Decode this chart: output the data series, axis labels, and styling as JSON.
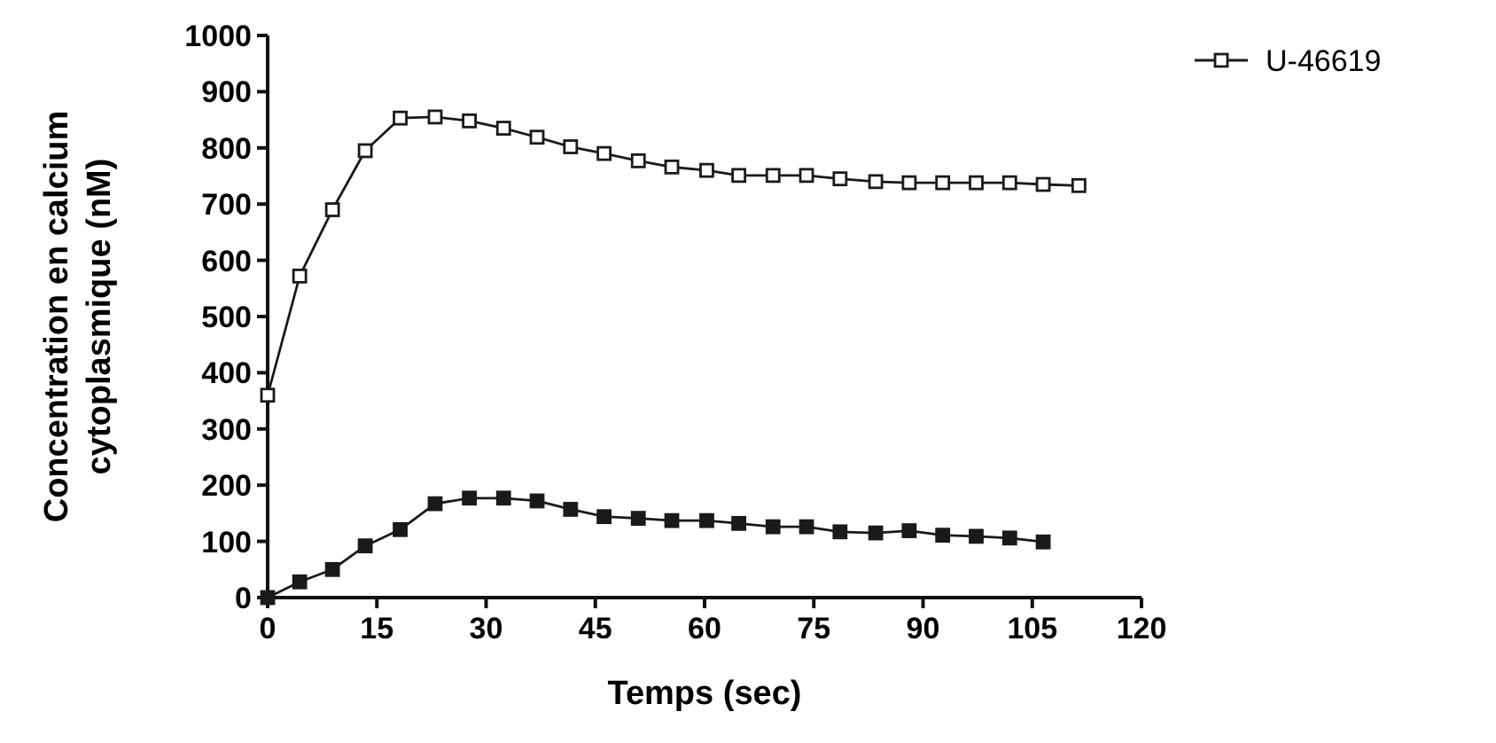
{
  "chart_data": {
    "type": "line",
    "xlabel": "Temps (sec)",
    "ylabel": "Concentration en calcium\ncytoplasmique (nM)",
    "xlim": [
      0,
      120
    ],
    "xticks": [
      0,
      15,
      30,
      45,
      60,
      75,
      90,
      105,
      120
    ],
    "ylim": [
      0,
      1000
    ],
    "yticks": [
      0,
      100,
      200,
      300,
      400,
      500,
      600,
      700,
      800,
      900,
      1000
    ],
    "marker": "square",
    "legend": "top right",
    "grid": false,
    "series": [
      {
        "name": "U-46619",
        "color": "#1a1a1a",
        "x": [
          0,
          4.4,
          8.9,
          13.4,
          18.2,
          23.0,
          27.7,
          32.4,
          37.0,
          41.6,
          46.2,
          50.9,
          55.5,
          60.3,
          64.7,
          69.4,
          74.0,
          78.6,
          83.5,
          88.1,
          92.7,
          97.3,
          101.9,
          106.5,
          111.4
        ],
        "values": [
          360,
          572,
          690,
          795,
          853,
          855,
          848,
          835,
          819,
          802,
          790,
          777,
          766,
          760,
          751,
          751,
          751,
          745,
          740,
          738,
          738,
          738,
          738,
          735,
          733
        ]
      },
      {
        "color": "#1a1a1a",
        "x": [
          0,
          4.4,
          8.9,
          13.4,
          18.2,
          23.0,
          27.7,
          32.4,
          37.0,
          41.6,
          46.2,
          50.9,
          55.5,
          60.3,
          64.7,
          69.4,
          74.0,
          78.6,
          83.5,
          88.1,
          92.7,
          97.3,
          101.9,
          106.5
        ],
        "values": [
          0,
          28,
          50,
          92,
          121,
          167,
          177,
          177,
          172,
          157,
          144,
          141,
          137,
          137,
          132,
          126,
          126,
          117,
          115,
          119,
          111,
          109,
          106,
          99
        ]
      }
    ]
  }
}
